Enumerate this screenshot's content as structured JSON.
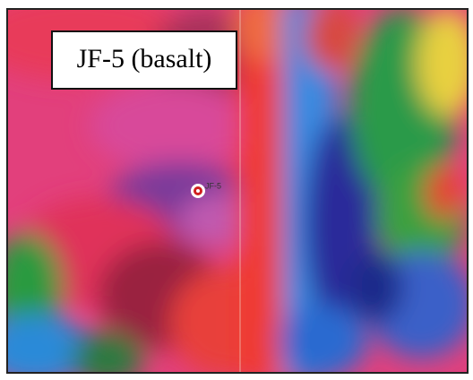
{
  "title": "JF-5 (basalt)",
  "marker": {
    "label": "JF-5"
  }
}
